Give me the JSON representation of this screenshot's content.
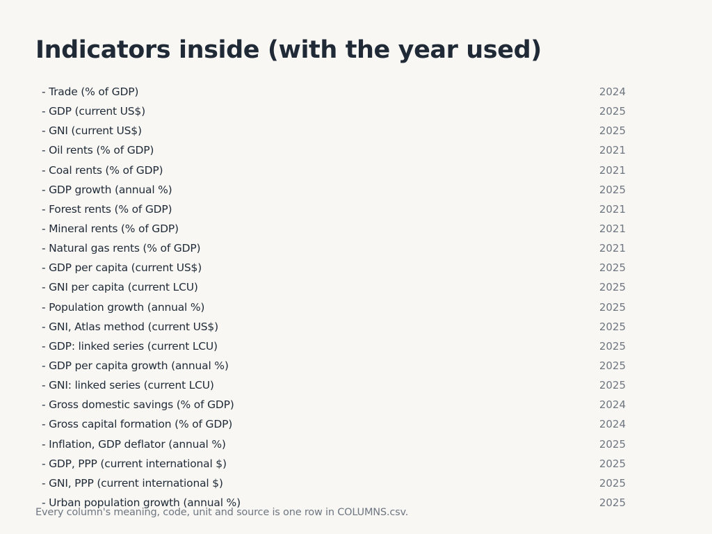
{
  "title": "Indicators inside (with the year used)",
  "indicators": [
    {
      "name": "- Trade (% of GDP)",
      "year": "2024"
    },
    {
      "name": "- GDP (current US$)",
      "year": "2025"
    },
    {
      "name": "- GNI (current US$)",
      "year": "2025"
    },
    {
      "name": "- Oil rents (% of GDP)",
      "year": "2021"
    },
    {
      "name": "- Coal rents (% of GDP)",
      "year": "2021"
    },
    {
      "name": "- GDP growth (annual %)",
      "year": "2025"
    },
    {
      "name": "- Forest rents (% of GDP)",
      "year": "2021"
    },
    {
      "name": "- Mineral rents (% of GDP)",
      "year": "2021"
    },
    {
      "name": "- Natural gas rents (% of GDP)",
      "year": "2021"
    },
    {
      "name": "- GDP per capita (current US$)",
      "year": "2025"
    },
    {
      "name": "- GNI per capita (current LCU)",
      "year": "2025"
    },
    {
      "name": "- Population growth (annual %)",
      "year": "2025"
    },
    {
      "name": "- GNI, Atlas method (current US$)",
      "year": "2025"
    },
    {
      "name": "- GDP: linked series (current LCU)",
      "year": "2025"
    },
    {
      "name": "- GDP per capita growth (annual %)",
      "year": "2025"
    },
    {
      "name": "- GNI: linked series (current LCU)",
      "year": "2025"
    },
    {
      "name": "- Gross domestic savings (% of GDP)",
      "year": "2024"
    },
    {
      "name": "- Gross capital formation (% of GDP)",
      "year": "2024"
    },
    {
      "name": "- Inflation, GDP deflator (annual %)",
      "year": "2025"
    },
    {
      "name": "- GDP, PPP (current international $)",
      "year": "2025"
    },
    {
      "name": "- GNI, PPP (current international $)",
      "year": "2025"
    },
    {
      "name": "- Urban population growth (annual %)",
      "year": "2025"
    }
  ],
  "footer": "Every column's meaning, code, unit and source is one row in COLUMNS.csv."
}
